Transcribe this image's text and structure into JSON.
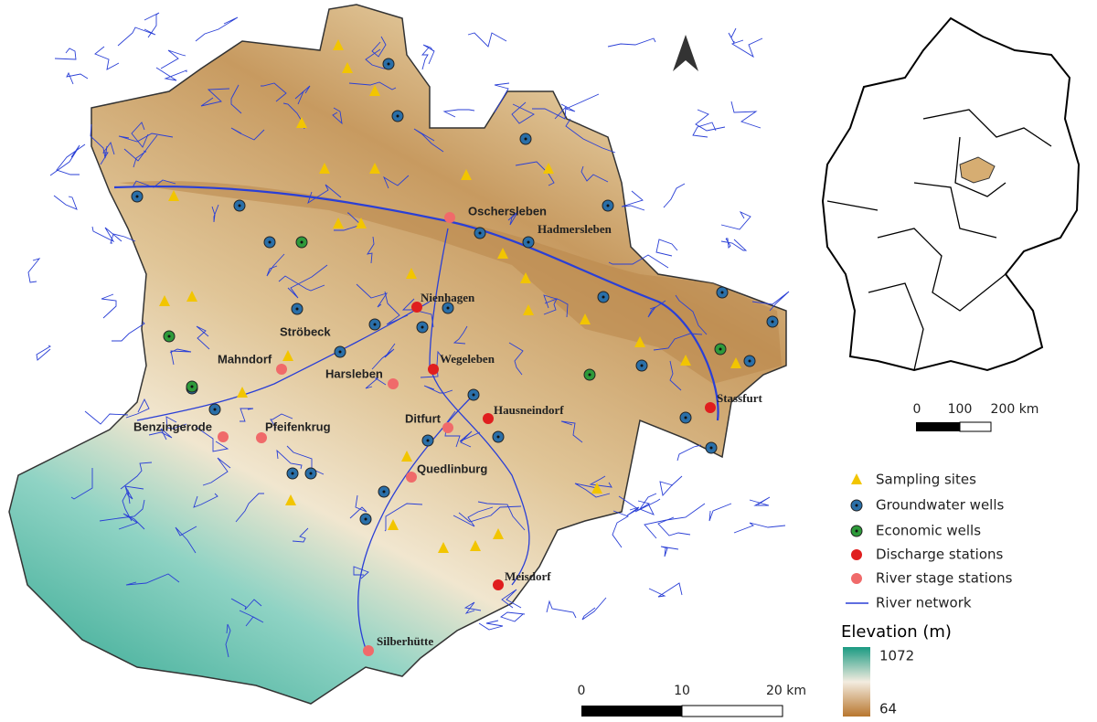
{
  "map": {
    "places": [
      "Oschersleben",
      "Hadmersleben",
      "Nienhagen",
      "Ströbeck",
      "Mahndorf",
      "Harsleben",
      "Wegeleben",
      "Hausneindorf",
      "Stassfurt",
      "Benzingerode",
      "Pfeifenkrug",
      "Ditfurt",
      "Quedlinburg",
      "Meisdorf",
      "Silberhütte"
    ],
    "scale_bar": {
      "labels": [
        "0",
        "10",
        "20 km"
      ]
    },
    "inset_scale_bar": {
      "labels": [
        "0",
        "100",
        "200 km"
      ]
    },
    "legend": [
      "Sampling sites",
      "Groundwater wells",
      "Economic wells",
      "Discharge stations",
      "River stage stations",
      "River network"
    ],
    "elevation_legend": {
      "title": "Elevation (m)",
      "max": 1072,
      "min": 64
    }
  }
}
